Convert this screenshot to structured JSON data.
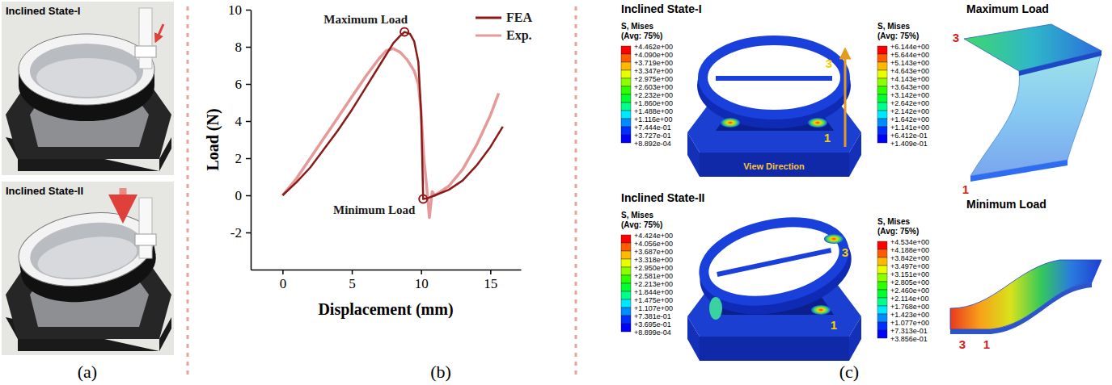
{
  "chart_data": {
    "type": "line",
    "x_label": "Displacement (mm)",
    "y_label": "Load (N)",
    "xlim": [
      -2.3,
      17.2
    ],
    "xticks": [
      0,
      5,
      10,
      15
    ],
    "ylim": [
      -4,
      10
    ],
    "yticks": [
      -2,
      0,
      2,
      4,
      6,
      8,
      10
    ],
    "legend": "upper right",
    "series": [
      {
        "name": "FEA",
        "color": "#8b1a1a",
        "x": [
          0,
          1,
          2,
          3,
          4,
          5,
          6,
          7,
          8,
          8.5,
          8.8,
          9.2,
          9.5,
          9.8,
          10.0,
          10.1,
          10.15,
          10.5,
          11,
          12,
          13,
          14,
          15,
          15.9
        ],
        "values": [
          0,
          0.7,
          1.5,
          2.5,
          3.5,
          4.6,
          5.8,
          7.0,
          8.2,
          8.6,
          8.8,
          8.7,
          8.3,
          7.2,
          4.5,
          1.5,
          -0.2,
          -0.15,
          0,
          0.3,
          0.8,
          1.6,
          2.6,
          3.7
        ]
      },
      {
        "name": "Exp.",
        "color": "#e59a9a",
        "x": [
          0,
          1,
          2,
          3,
          4,
          5,
          6,
          7,
          7.5,
          8,
          8.5,
          9,
          9.5,
          9.8,
          10.0,
          10.2,
          10.4,
          10.6,
          10.8,
          11,
          12,
          13,
          14,
          15,
          15.6
        ],
        "values": [
          0,
          0.9,
          2.0,
          3.1,
          4.2,
          5.3,
          6.4,
          7.4,
          7.8,
          7.9,
          7.7,
          7.3,
          6.7,
          6.0,
          4.5,
          2.0,
          0.5,
          -1.2,
          0.2,
          0.0,
          0.5,
          1.4,
          2.7,
          4.3,
          5.5
        ]
      }
    ],
    "annotations": [
      {
        "text": "Maximum Load",
        "x": 8.8,
        "y": 8.8
      },
      {
        "text": "Minimum Load",
        "x": 10.15,
        "y": -0.2
      }
    ]
  },
  "panel_a": {
    "label": "(a)",
    "photos": [
      {
        "title": "Inclined State-I"
      },
      {
        "title": "Inclined State-II"
      }
    ]
  },
  "panel_b": {
    "label": "(b)"
  },
  "panel_c": {
    "label": "(c)",
    "contours": [
      {
        "title": "Inclined State-I",
        "legend_title": "S, Mises",
        "legend_subtitle": "(Avg: 75%)",
        "levels": [
          "+4.462e+00",
          "+4.090e+00",
          "+3.719e+00",
          "+3.347e+00",
          "+2.975e+00",
          "+2.603e+00",
          "+2.232e+00",
          "+1.860e+00",
          "+1.488e+00",
          "+1.116e+00",
          "+7.444e-01",
          "+3.727e-01",
          "+8.892e-04"
        ],
        "markers": [
          "3",
          "1"
        ],
        "note": "View Direction"
      },
      {
        "title": "Maximum Load",
        "legend_title": "S, Mises",
        "legend_subtitle": "(Avg: 75%)",
        "levels": [
          "+6.144e+00",
          "+5.644e+00",
          "+5.143e+00",
          "+4.643e+00",
          "+4.143e+00",
          "+3.643e+00",
          "+3.142e+00",
          "+2.642e+00",
          "+2.142e+00",
          "+1.642e+00",
          "+1.141e+00",
          "+6.412e-01",
          "+1.409e-01"
        ],
        "markers": [
          "3",
          "1"
        ]
      },
      {
        "title": "Inclined State-II",
        "legend_title": "S, Mises",
        "legend_subtitle": "(Avg: 75%)",
        "levels": [
          "+4.424e+00",
          "+4.056e+00",
          "+3.687e+00",
          "+3.318e+00",
          "+2.950e+00",
          "+2.581e+00",
          "+2.213e+00",
          "+1.844e+00",
          "+1.475e+00",
          "+1.107e+00",
          "+7.381e-01",
          "+3.695e-01",
          "+8.899e-04"
        ],
        "markers": [
          "3",
          "1"
        ]
      },
      {
        "title": "Minimum Load",
        "legend_title": "S, Mises",
        "legend_subtitle": "(Avg: 75%)",
        "levels": [
          "+4.534e+00",
          "+4.188e+00",
          "+3.842e+00",
          "+3.497e+00",
          "+3.151e+00",
          "+2.805e+00",
          "+2.460e+00",
          "+2.114e+00",
          "+1.768e+00",
          "+1.423e+00",
          "+1.077e+00",
          "+7.313e-01",
          "+3.856e-01"
        ],
        "markers": [
          "3",
          "1"
        ]
      }
    ]
  }
}
